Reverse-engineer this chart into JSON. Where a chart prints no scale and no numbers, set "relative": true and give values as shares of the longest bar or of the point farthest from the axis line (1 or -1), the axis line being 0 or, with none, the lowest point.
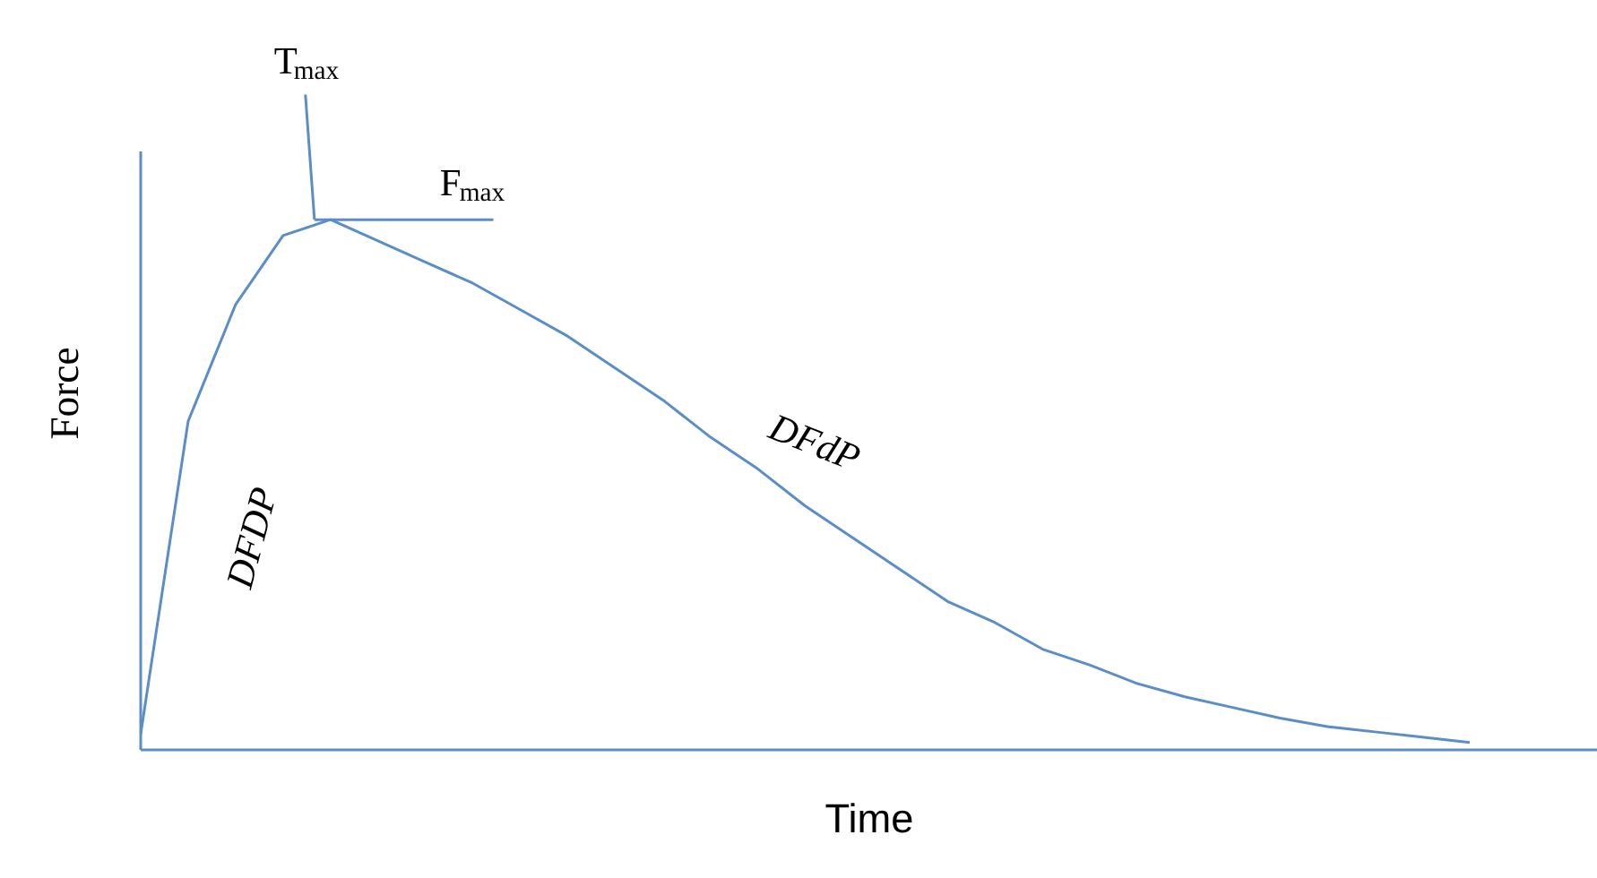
{
  "chart_data": {
    "type": "line",
    "relative": true,
    "xlabel": "Time",
    "ylabel": "Force",
    "color": "#5b8ec8",
    "categories": [
      null,
      null,
      null,
      null,
      null,
      null,
      null,
      null,
      null,
      null,
      null,
      null,
      null,
      null,
      null,
      null,
      null,
      null,
      null,
      null,
      null,
      null,
      null,
      null,
      null,
      null,
      null,
      null,
      null
    ],
    "values": [
      0.03,
      0.62,
      0.84,
      0.97,
      1.0,
      0.96,
      0.92,
      0.88,
      0.83,
      0.78,
      0.72,
      0.66,
      0.59,
      0.53,
      0.46,
      0.4,
      0.34,
      0.28,
      0.24,
      0.19,
      0.16,
      0.125,
      0.1,
      0.08,
      0.06,
      0.044,
      0.034,
      0.024,
      0.014
    ],
    "annotations": [
      "T$_{max}$",
      "F$_{max}$",
      "DFDP",
      "DFdP"
    ]
  }
}
